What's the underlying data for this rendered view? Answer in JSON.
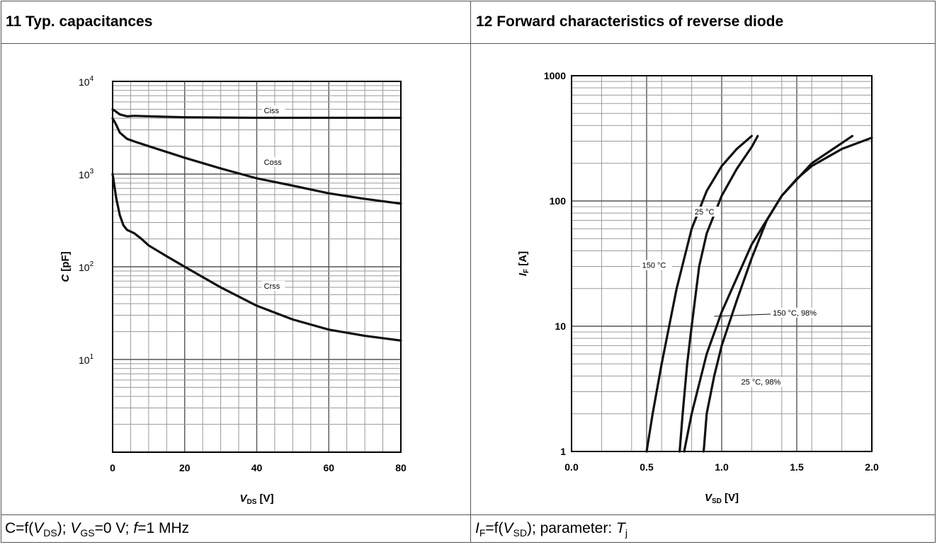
{
  "left_panel": {
    "heading": "11 Typ. capacitances",
    "caption": {
      "func": "C=f(",
      "x_sym": "V",
      "x_sub": "DS",
      "sep1": "); ",
      "cond_sym": "V",
      "cond_sub": "GS",
      "cond_val": "=0 V; ",
      "freq_sym": "f",
      "freq_val": "=1 MHz"
    }
  },
  "right_panel": {
    "heading": "12 Forward characteristics of reverse diode",
    "caption": {
      "y_sym": "I",
      "y_sub": "F",
      "func": "=f(",
      "x_sym": "V",
      "x_sub": "SD",
      "rest": "); parameter: ",
      "param_sym": "T",
      "param_sub": "j"
    }
  },
  "chart_data": [
    {
      "type": "line",
      "ylabel_sym": "C",
      "ylabel_unit": "[pF]",
      "xlabel_sym": "V",
      "xlabel_sub": "DS",
      "xlabel_unit": "[V]",
      "xlim": [
        0,
        80
      ],
      "ylim": [
        1,
        10000
      ],
      "yscale": "log",
      "grid": true,
      "x_ticks": [
        0,
        20,
        40,
        60,
        80
      ],
      "y_ticks": [
        {
          "base": "10",
          "exp": "1",
          "value": 10
        },
        {
          "base": "10",
          "exp": "2",
          "value": 100
        },
        {
          "base": "10",
          "exp": "3",
          "value": 1000
        },
        {
          "base": "10",
          "exp": "4",
          "value": 10000
        }
      ],
      "series": [
        {
          "name": "Ciss",
          "label_at": [
            42,
            4700
          ],
          "x": [
            0,
            1,
            2,
            4,
            6,
            10,
            20,
            40,
            60,
            80
          ],
          "y": [
            5000,
            4700,
            4400,
            4200,
            4250,
            4200,
            4100,
            4050,
            4050,
            4050
          ]
        },
        {
          "name": "Coss",
          "label_at": [
            42,
            1300
          ],
          "x": [
            0,
            1,
            2,
            4,
            6,
            10,
            20,
            30,
            40,
            50,
            60,
            70,
            80
          ],
          "y": [
            4000,
            3400,
            2800,
            2400,
            2250,
            2000,
            1500,
            1150,
            900,
            750,
            620,
            540,
            480
          ]
        },
        {
          "name": "Crss",
          "label_at": [
            42,
            60
          ],
          "x": [
            0,
            1,
            2,
            3,
            4,
            6,
            8,
            10,
            15,
            20,
            30,
            40,
            50,
            60,
            70,
            80
          ],
          "y": [
            1000,
            550,
            360,
            280,
            250,
            230,
            200,
            170,
            130,
            100,
            60,
            38,
            27,
            21,
            18,
            16
          ]
        }
      ]
    },
    {
      "type": "line",
      "ylabel_sym": "I",
      "ylabel_sub": "F",
      "ylabel_unit": "[A]",
      "xlabel_sym": "V",
      "xlabel_sub": "SD",
      "xlabel_unit": "[V]",
      "xlim": [
        0,
        2
      ],
      "ylim": [
        1,
        1000
      ],
      "yscale": "log",
      "grid": true,
      "x_ticks": [
        "0.0",
        "0.5",
        "1.0",
        "1.5",
        "2.0"
      ],
      "y_ticks": [
        "1",
        "10",
        "100",
        "1000"
      ],
      "series": [
        {
          "name": "150 °C",
          "label_at": [
            0.47,
            30
          ],
          "x": [
            0.5,
            0.54,
            0.6,
            0.65,
            0.7,
            0.8,
            0.9,
            1.0,
            1.1,
            1.2
          ],
          "y": [
            1,
            2,
            5,
            10,
            20,
            60,
            120,
            190,
            260,
            330
          ]
        },
        {
          "name": "25 °C",
          "label_at": [
            0.82,
            80
          ],
          "x": [
            0.72,
            0.74,
            0.77,
            0.8,
            0.85,
            0.9,
            1.0,
            1.1,
            1.2,
            1.24
          ],
          "y": [
            1,
            2,
            5,
            10,
            30,
            55,
            110,
            180,
            270,
            330
          ]
        },
        {
          "name": "150 °C, 98%",
          "label_at": [
            1.34,
            12.5
          ],
          "leader_to": [
            0.95,
            12
          ],
          "x": [
            0.75,
            0.8,
            0.9,
            1.0,
            1.2,
            1.4,
            1.6,
            1.8,
            1.87
          ],
          "y": [
            1,
            2,
            6,
            13,
            45,
            110,
            200,
            290,
            330
          ]
        },
        {
          "name": "25 °C, 98%",
          "label_at": [
            1.13,
            3.5
          ],
          "x": [
            0.88,
            0.9,
            0.95,
            1.0,
            1.1,
            1.2,
            1.3,
            1.4,
            1.5,
            1.6,
            1.8,
            2.0
          ],
          "y": [
            1,
            2,
            4,
            7,
            16,
            35,
            70,
            110,
            150,
            190,
            260,
            320
          ]
        }
      ]
    }
  ]
}
